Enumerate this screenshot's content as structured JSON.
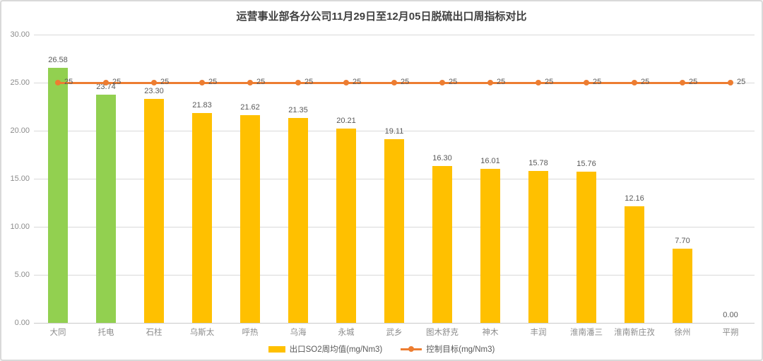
{
  "chart_data": {
    "type": "bar",
    "title": "运营事业部各分公司11月29日至12月05日脱硫出口周指标对比",
    "categories": [
      "大同",
      "托电",
      "石柱",
      "乌斯太",
      "呼热",
      "乌海",
      "永城",
      "武乡",
      "图木舒克",
      "神木",
      "丰润",
      "淮南潘三",
      "淮南新庄孜",
      "徐州",
      "平朔"
    ],
    "series": [
      {
        "name": "出口SO2周均值(mg/Nm3)",
        "type": "bar",
        "values": [
          26.58,
          23.74,
          23.3,
          21.83,
          21.62,
          21.35,
          20.21,
          19.11,
          16.3,
          16.01,
          15.78,
          15.76,
          12.16,
          7.7,
          0.0
        ],
        "value_labels": [
          "26.58",
          "23.74",
          "23.30",
          "21.83",
          "21.62",
          "21.35",
          "20.21",
          "19.11",
          "16.30",
          "16.01",
          "15.78",
          "15.76",
          "12.16",
          "7.70",
          "0.00"
        ],
        "bar_colors": [
          "#92D050",
          "#92D050",
          "#FFC000",
          "#FFC000",
          "#FFC000",
          "#FFC000",
          "#FFC000",
          "#FFC000",
          "#FFC000",
          "#FFC000",
          "#FFC000",
          "#FFC000",
          "#FFC000",
          "#FFC000",
          "#FFC000"
        ]
      },
      {
        "name": "控制目标(mg/Nm3)",
        "type": "line",
        "values": [
          25,
          25,
          25,
          25,
          25,
          25,
          25,
          25,
          25,
          25,
          25,
          25,
          25,
          25,
          25
        ],
        "value_labels": [
          "25",
          "25",
          "25",
          "25",
          "25",
          "25",
          "25",
          "25",
          "25",
          "25",
          "25",
          "25",
          "25",
          "25",
          "25"
        ],
        "color": "#ED7D31"
      }
    ],
    "ylim": [
      0,
      30
    ],
    "ytick_interval": 5,
    "ytick_labels": [
      "0.00",
      "5.00",
      "10.00",
      "15.00",
      "20.00",
      "25.00",
      "30.00"
    ],
    "grid": true,
    "legend_position": "bottom"
  },
  "colors": {
    "bar_default": "#FFC000",
    "bar_highlight": "#92D050",
    "target_line": "#ED7D31",
    "grid": "#D9D9D9",
    "title_text": "#404040",
    "data_label_text": "#595959",
    "axis_label_text": "#8C8C8C"
  }
}
